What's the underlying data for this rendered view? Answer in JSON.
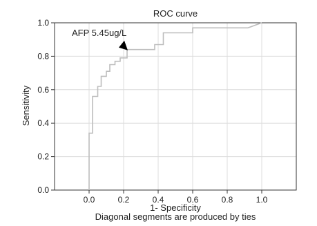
{
  "chart_data": {
    "type": "line",
    "title": "ROC curve",
    "xlabel": "1- Specificity",
    "ylabel": "Sensitivity",
    "footnote": "Diagonal segments are produced by ties",
    "xlim": [
      -0.2,
      1.2
    ],
    "ylim": [
      0,
      1
    ],
    "xticks": [
      0.0,
      0.2,
      0.4,
      0.6,
      0.8,
      1.0
    ],
    "yticks": [
      0.0,
      0.2,
      0.4,
      0.6,
      0.8,
      1.0
    ],
    "xtick_labels": [
      "0.0",
      "0.2",
      "0.4",
      "0.6",
      "0.8",
      "1.0"
    ],
    "ytick_labels": [
      "0.0",
      "0.2",
      "0.4",
      "0.6",
      "0.8",
      "1.0"
    ],
    "grid": true,
    "series": [
      {
        "x": [
          0.0,
          0.0,
          0.02,
          0.02,
          0.05,
          0.05,
          0.07,
          0.07,
          0.1,
          0.1,
          0.12,
          0.12,
          0.15,
          0.15,
          0.18,
          0.18,
          0.22,
          0.22,
          0.38,
          0.38,
          0.43,
          0.43,
          0.6,
          0.6,
          0.92,
          1.0
        ],
        "y": [
          0.0,
          0.34,
          0.34,
          0.56,
          0.56,
          0.62,
          0.62,
          0.68,
          0.68,
          0.71,
          0.71,
          0.75,
          0.75,
          0.77,
          0.77,
          0.79,
          0.79,
          0.84,
          0.84,
          0.87,
          0.87,
          0.94,
          0.94,
          0.97,
          0.97,
          1.0
        ]
      }
    ],
    "annotation": {
      "text": "AFP 5.45ug/L",
      "x": 0.22,
      "y": 0.84
    },
    "colors": {
      "line": "#bdbdbd",
      "grid": "#dcdcdc",
      "axis": "#333333",
      "marker": "#000000"
    }
  }
}
